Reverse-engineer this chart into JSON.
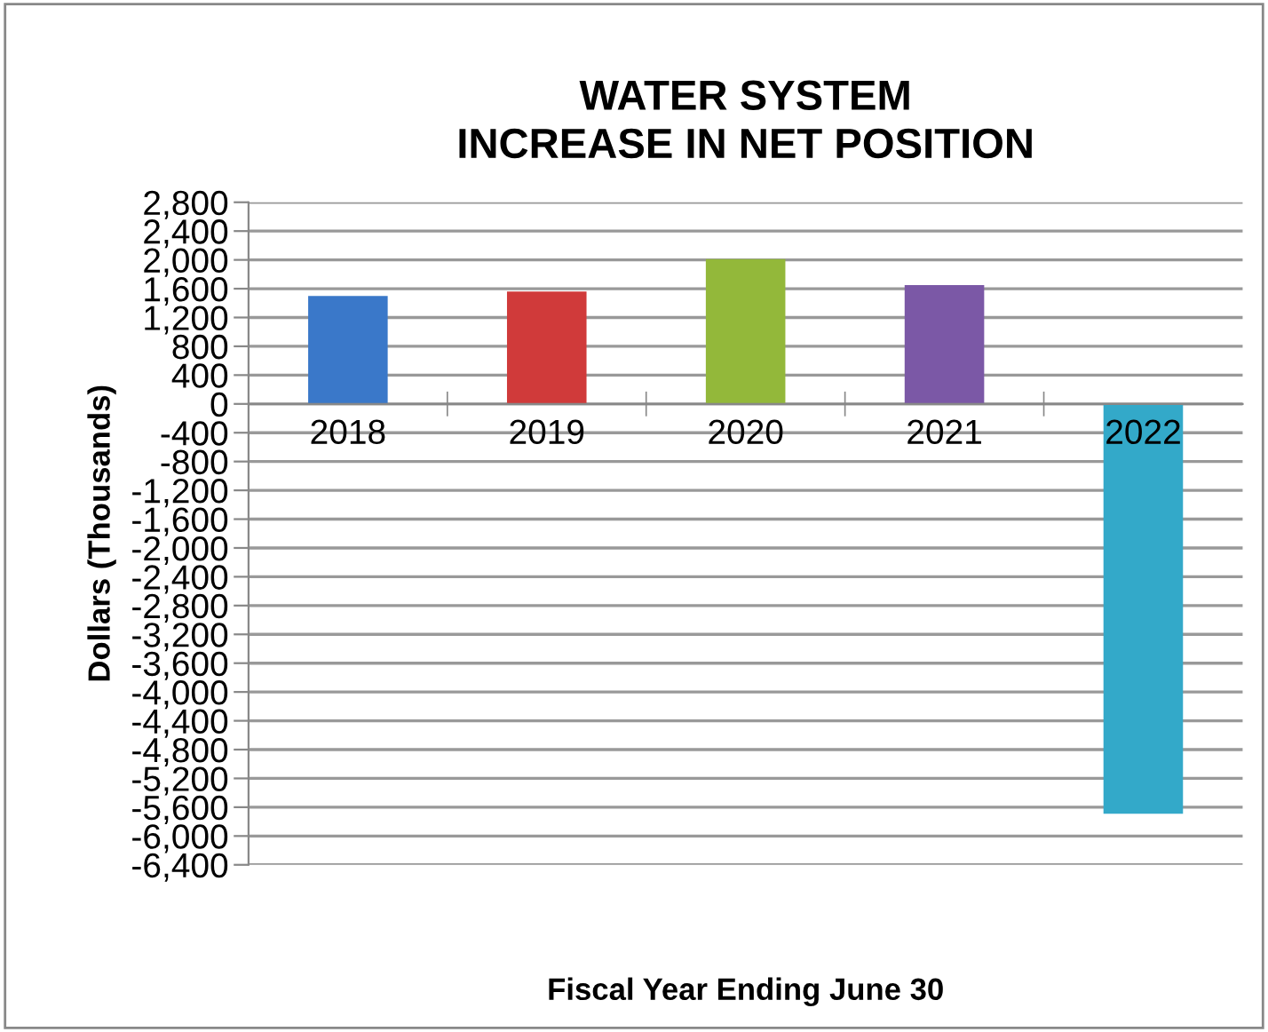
{
  "chart_data": {
    "type": "bar",
    "title": "WATER SYSTEM\nINCREASE IN NET POSITION",
    "xlabel": "Fiscal Year Ending June 30",
    "ylabel": "Dollars (Thousands)",
    "categories": [
      "2018",
      "2019",
      "2020",
      "2021",
      "2022"
    ],
    "values": [
      1500,
      1560,
      2010,
      1650,
      -5690
    ],
    "colors": [
      "#3a78c9",
      "#d03a3a",
      "#93b83a",
      "#7b58a6",
      "#33a9c9"
    ],
    "ylim": [
      -6400,
      2800
    ],
    "yticks": [
      {
        "value": -6400,
        "label": "-6,400"
      },
      {
        "value": -6000,
        "label": "-6,000"
      },
      {
        "value": -5600,
        "label": "-5,600"
      },
      {
        "value": -5200,
        "label": "-5,200"
      },
      {
        "value": -4800,
        "label": "-4,800"
      },
      {
        "value": -4400,
        "label": "-4,400"
      },
      {
        "value": -4000,
        "label": "-4,000"
      },
      {
        "value": -3600,
        "label": "-3,600"
      },
      {
        "value": -3200,
        "label": "-3,200"
      },
      {
        "value": -2800,
        "label": "-2,800"
      },
      {
        "value": -2400,
        "label": "-2,400"
      },
      {
        "value": -2000,
        "label": "-2,000"
      },
      {
        "value": -1600,
        "label": "-1,600"
      },
      {
        "value": -1200,
        "label": "-1,200"
      },
      {
        "value": -800,
        "label": "-800"
      },
      {
        "value": -400,
        "label": "-400"
      },
      0,
      400,
      800,
      {
        "value": 1200,
        "label": "1,200"
      },
      {
        "value": 1600,
        "label": "1,600"
      },
      {
        "value": 2000,
        "label": "2,000"
      },
      {
        "value": 2400,
        "label": "2,400"
      },
      {
        "value": 2800,
        "label": "2,800"
      }
    ],
    "grid": "y"
  }
}
